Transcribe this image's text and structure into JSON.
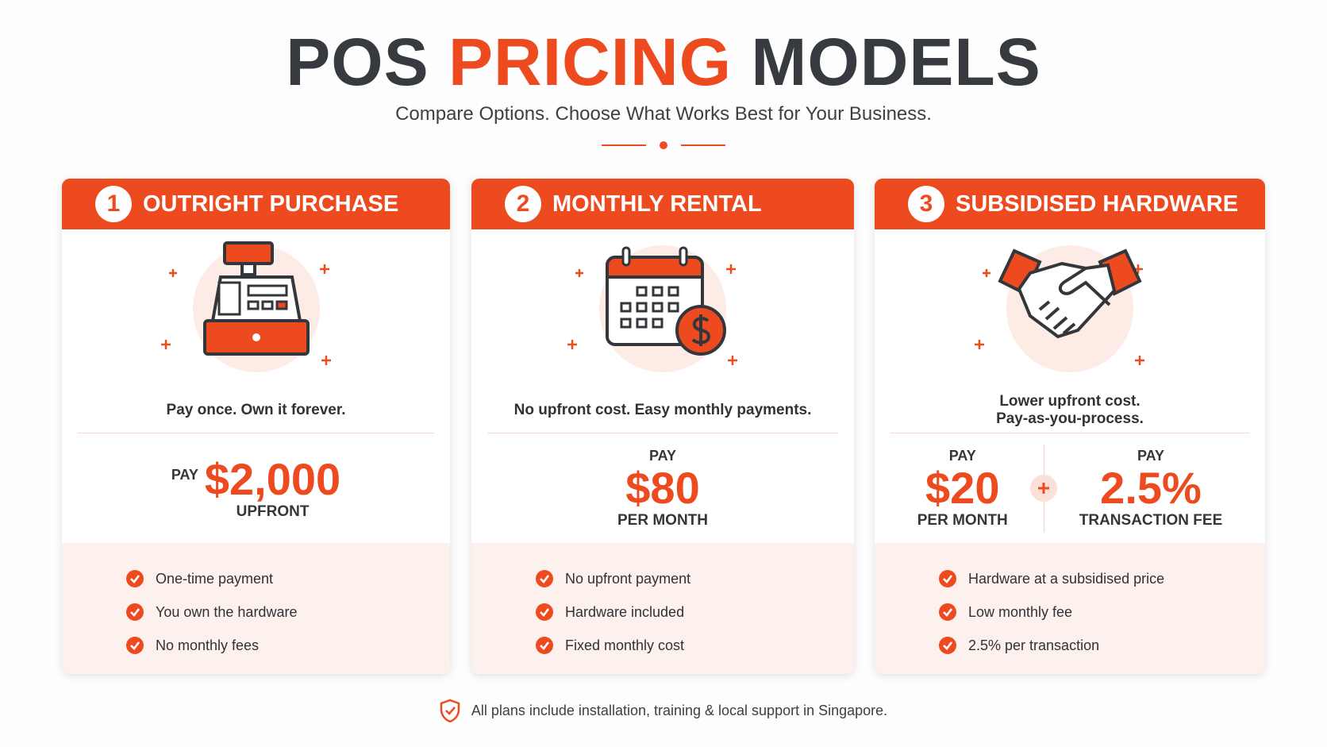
{
  "header": {
    "title": [
      "POS",
      "PRICING",
      "MODELS"
    ],
    "subtitle": "Compare Options. Choose What Works Best for Your Business."
  },
  "cards": [
    {
      "number": "1",
      "title": "OUTRIGHT PURCHASE",
      "tagline": [
        "Pay once. Own it forever."
      ],
      "prices": [
        {
          "top": "PAY",
          "amount": "$2,000",
          "bottom": "UPFRONT"
        }
      ],
      "features": [
        "One-time payment",
        "You own the hardware",
        "No monthly fees"
      ]
    },
    {
      "number": "2",
      "title": "MONTHLY RENTAL",
      "tagline": [
        "No upfront cost. Easy monthly payments."
      ],
      "prices": [
        {
          "top": "PAY",
          "amount": "$80",
          "bottom": "PER MONTH"
        }
      ],
      "features": [
        "No upfront payment",
        "Hardware included",
        "Fixed monthly cost"
      ]
    },
    {
      "number": "3",
      "title": "SUBSIDISED HARDWARE",
      "tagline": [
        "Lower upfront cost.",
        "Pay-as-you-process."
      ],
      "prices": [
        {
          "top": "PAY",
          "amount": "$20",
          "bottom": "PER MONTH"
        },
        {
          "top": "PAY",
          "amount": "2.5%",
          "bottom": "TRANSACTION FEE"
        }
      ],
      "features": [
        "Hardware at a subsidised price",
        "Low monthly fee",
        "2.5% per transaction"
      ]
    }
  ],
  "footer": {
    "note": "All plans include installation, training & local support in Singapore."
  }
}
